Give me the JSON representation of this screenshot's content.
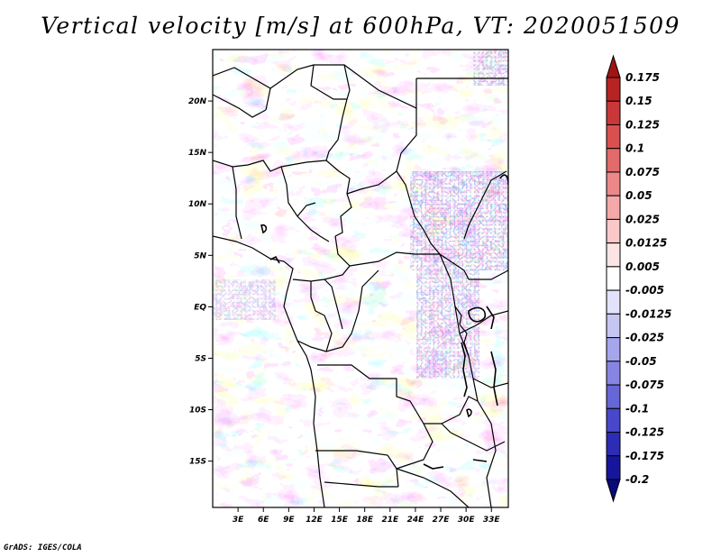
{
  "title": "Vertical velocity [m/s] at 600hPa, VT: 2020051509",
  "credit": "GrADS: IGES/COLA",
  "map": {
    "region": "Central Africa",
    "lon_labels": [
      "3E",
      "6E",
      "9E",
      "12E",
      "15E",
      "18E",
      "21E",
      "24E",
      "27E",
      "30E",
      "33E"
    ],
    "lat_labels": [
      "20N",
      "15N",
      "10N",
      "5N",
      "EQ",
      "5S",
      "10S",
      "15S"
    ],
    "lon_range": [
      0,
      35
    ],
    "lat_range": [
      -19.5,
      25
    ],
    "field": "vertical velocity"
  },
  "colorbar": {
    "labels": [
      "0.175",
      "0.15",
      "0.125",
      "0.1",
      "0.075",
      "0.05",
      "0.025",
      "0.0125",
      "0.005",
      "-0.005",
      "-0.0125",
      "-0.025",
      "-0.05",
      "-0.075",
      "-0.1",
      "-0.125",
      "-0.175",
      "-0.2"
    ],
    "colors": [
      "#a01414",
      "#b82424",
      "#c83838",
      "#d85050",
      "#e26a6a",
      "#ec8888",
      "#f4a8a8",
      "#fac8c8",
      "#fde4e4",
      "#ffffff",
      "#e2e2fb",
      "#c6c6f3",
      "#a6a6ec",
      "#8686e2",
      "#6666d6",
      "#4848c8",
      "#2c2cb4",
      "#16169c",
      "#0a0a78"
    ]
  }
}
